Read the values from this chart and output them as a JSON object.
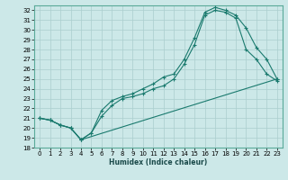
{
  "title": "",
  "xlabel": "Humidex (Indice chaleur)",
  "xlim": [
    -0.5,
    23.5
  ],
  "ylim": [
    18,
    32.5
  ],
  "xticks": [
    0,
    1,
    2,
    3,
    4,
    5,
    6,
    7,
    8,
    9,
    10,
    11,
    12,
    13,
    14,
    15,
    16,
    17,
    18,
    19,
    20,
    21,
    22,
    23
  ],
  "yticks": [
    18,
    19,
    20,
    21,
    22,
    23,
    24,
    25,
    26,
    27,
    28,
    29,
    30,
    31,
    32
  ],
  "bg_color": "#cce8e8",
  "line_color": "#1a7a6e",
  "grid_color": "#aacece",
  "line1_x": [
    0,
    1,
    2,
    3,
    4,
    5,
    6,
    7,
    8,
    9,
    10,
    11,
    12,
    13,
    14,
    15,
    16,
    17,
    18,
    19,
    20,
    21,
    22,
    23
  ],
  "line1_y": [
    21.0,
    20.8,
    20.3,
    20.0,
    18.8,
    19.5,
    21.8,
    22.8,
    23.2,
    23.5,
    24.0,
    24.5,
    25.2,
    25.5,
    27.0,
    29.2,
    31.8,
    32.3,
    32.0,
    31.5,
    30.2,
    28.2,
    27.0,
    25.0
  ],
  "line2_x": [
    0,
    1,
    2,
    3,
    4,
    5,
    6,
    7,
    8,
    9,
    10,
    11,
    12,
    13,
    14,
    15,
    16,
    17,
    18,
    19,
    20,
    21,
    22,
    23
  ],
  "line2_y": [
    21.0,
    20.8,
    20.3,
    20.0,
    18.8,
    19.5,
    21.2,
    22.3,
    23.0,
    23.2,
    23.5,
    24.0,
    24.3,
    25.0,
    26.5,
    28.5,
    31.5,
    32.0,
    31.8,
    31.2,
    28.0,
    27.0,
    25.5,
    24.8
  ],
  "line3_x": [
    0,
    1,
    2,
    3,
    4,
    23
  ],
  "line3_y": [
    21.0,
    20.8,
    20.3,
    20.0,
    18.8,
    25.0
  ]
}
